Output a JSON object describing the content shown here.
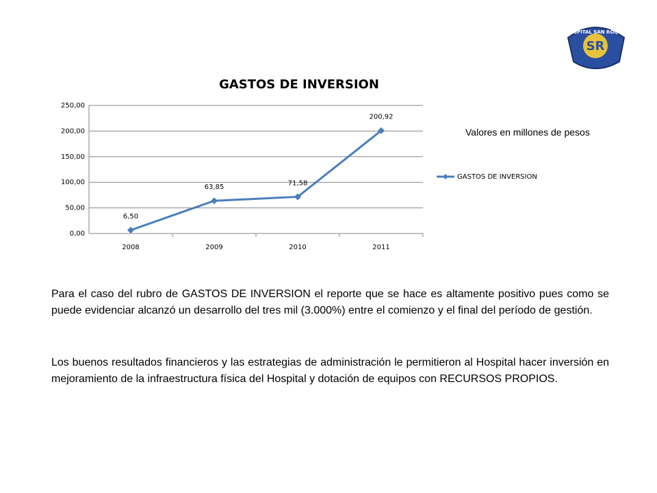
{
  "logo": {
    "name": "HOSPITAL SAN ROQUE",
    "initials": "SR"
  },
  "chart_data": {
    "type": "line",
    "title": "GASTOS DE INVERSION",
    "categories": [
      "2008",
      "2009",
      "2010",
      "2011"
    ],
    "series": [
      {
        "name": "GASTOS DE INVERSION",
        "color": "#4a7ebb",
        "values": [
          6.5,
          63.85,
          71.58,
          200.92
        ],
        "value_labels": [
          "6,50",
          "63,85",
          "71,58",
          "200,92"
        ]
      }
    ],
    "ylim": [
      0,
      250
    ],
    "yticks": [
      {
        "value": 0,
        "label": "0,00"
      },
      {
        "value": 50,
        "label": "50,00"
      },
      {
        "value": 100,
        "label": "100,00"
      },
      {
        "value": 150,
        "label": "150,00"
      },
      {
        "value": 200,
        "label": "200,00"
      },
      {
        "value": 250,
        "label": "250,00"
      }
    ],
    "grid": true,
    "legend": "right"
  },
  "note": "Valores en millones de pesos",
  "paragraphs": [
    "Para el caso del rubro de GASTOS DE INVERSION el reporte que se hace es altamente positivo pues como se puede evidenciar alcanzó un desarrollo del tres mil (3.000%) entre el comienzo y el final del período de gestión.",
    "Los buenos resultados financieros y las estrategias de administración le permitieron al Hospital hacer inversión en mejoramiento de la infraestructura física del Hospital y dotación de equipos con RECURSOS PROPIOS."
  ]
}
